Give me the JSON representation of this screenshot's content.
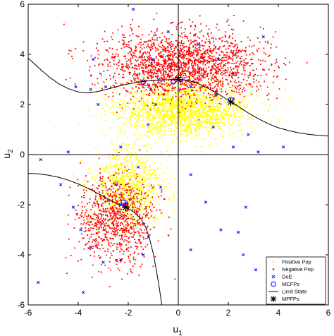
{
  "chart_data": {
    "type": "scatter",
    "title": "",
    "xlabel": "u",
    "xlabel_sub": "1",
    "ylabel": "u",
    "ylabel_sub": "2",
    "xlim": [
      -6,
      6
    ],
    "ylim": [
      -6,
      6
    ],
    "xticks": [
      "-6",
      "-4",
      "-2",
      "0",
      "2",
      "4",
      "6"
    ],
    "yticks": [
      "-6",
      "-4",
      "-2",
      "0",
      "2",
      "4",
      "6"
    ],
    "grid": false,
    "zero_lines": true,
    "legend_position": "bottom-right",
    "colors": {
      "positive": "#ffff00",
      "negative": "#ff0000",
      "doe": "#0000ff",
      "mcfp": "#0000ff",
      "limit_state": "#000000",
      "mpfp": "#000000"
    },
    "series": [
      {
        "name": "Positive Pop",
        "marker": "dot",
        "clusters": [
          {
            "center": [
              0.2,
              1.8
            ],
            "spread": [
              1.3,
              0.55
            ],
            "count": 1800
          },
          {
            "center": [
              -2.0,
              -1.3
            ],
            "spread": [
              0.7,
              0.8
            ],
            "count": 900
          }
        ]
      },
      {
        "name": "Negative Pop",
        "marker": "dot",
        "clusters": [
          {
            "center": [
              0.2,
              3.6
            ],
            "spread": [
              1.6,
              0.65
            ],
            "count": 1900
          },
          {
            "center": [
              -2.5,
              -2.6
            ],
            "spread": [
              0.75,
              0.9
            ],
            "count": 900
          }
        ]
      },
      {
        "name": "DoE",
        "marker": "x",
        "points": [
          [
            -3.4,
            3.8
          ],
          [
            -3.5,
            2.6
          ],
          [
            -4.1,
            2.7
          ],
          [
            -3.2,
            2.0
          ],
          [
            -1.8,
            5.8
          ],
          [
            -1.2,
            1.2
          ],
          [
            -1.0,
            3.8
          ],
          [
            -0.8,
            3.0
          ],
          [
            -0.4,
            4.9
          ],
          [
            0.5,
            2.7
          ],
          [
            0.8,
            4.4
          ],
          [
            1.5,
            2.4
          ],
          [
            2.2,
            3.2
          ],
          [
            3.4,
            4.7
          ],
          [
            1.6,
            3.8
          ],
          [
            1.4,
            1.1
          ],
          [
            3.2,
            0.1
          ],
          [
            2.2,
            0.3
          ],
          [
            -5.5,
            -0.2
          ],
          [
            -4.4,
            0.1
          ],
          [
            -2.3,
            0.3
          ],
          [
            -1.6,
            -0.5
          ],
          [
            -4.7,
            -1.2
          ],
          [
            -4.2,
            -2.1
          ],
          [
            -3.5,
            -3.7
          ],
          [
            -3.0,
            -4.3
          ],
          [
            -2.3,
            -4.2
          ],
          [
            -1.4,
            -4.0
          ],
          [
            -5.6,
            -5.1
          ],
          [
            -3.8,
            -5.5
          ],
          [
            -1.2,
            -3.3
          ],
          [
            0.5,
            -3.8
          ],
          [
            2.6,
            -4.0
          ],
          [
            3.1,
            -4.6
          ],
          [
            2.4,
            -3.1
          ],
          [
            1.7,
            -3.0
          ],
          [
            2.7,
            -2.1
          ],
          [
            1.1,
            -1.9
          ],
          [
            -0.7,
            -1.3
          ],
          [
            -2.5,
            -1.2
          ],
          [
            0.5,
            -0.8
          ],
          [
            2.8,
            0.8
          ],
          [
            -0.9,
            2.0
          ],
          [
            -2.9,
            2.7
          ],
          [
            -1.1,
            2.6
          ],
          [
            4.2,
            0.3
          ],
          [
            -3.9,
            -3.0
          ],
          [
            -2.3,
            -2.0
          ]
        ]
      },
      {
        "name": "MCFPs",
        "marker": "circle",
        "points": [
          [
            -1.4,
            2.9
          ],
          [
            -0.2,
            2.9
          ],
          [
            0.1,
            3.0
          ],
          [
            2.1,
            2.2
          ],
          [
            -2.1,
            -2.0
          ],
          [
            -2.2,
            -1.9
          ]
        ]
      },
      {
        "name": "Limit State",
        "marker": "line",
        "segments": [
          [
            [
              -6.0,
              3.85
            ],
            [
              -5.6,
              3.48
            ],
            [
              -5.2,
              3.13
            ],
            [
              -4.8,
              2.84
            ],
            [
              -4.4,
              2.63
            ],
            [
              -4.0,
              2.5
            ],
            [
              -3.6,
              2.46
            ],
            [
              -3.2,
              2.52
            ],
            [
              -2.8,
              2.62
            ],
            [
              -2.4,
              2.73
            ],
            [
              -2.0,
              2.82
            ],
            [
              -1.6,
              2.89
            ],
            [
              -1.2,
              2.94
            ],
            [
              -0.8,
              2.97
            ],
            [
              -0.4,
              2.99
            ],
            [
              0.0,
              3.0
            ],
            [
              0.4,
              2.96
            ],
            [
              0.8,
              2.83
            ],
            [
              1.2,
              2.64
            ],
            [
              1.6,
              2.42
            ],
            [
              2.0,
              2.17
            ],
            [
              2.4,
              1.92
            ],
            [
              2.8,
              1.66
            ],
            [
              3.2,
              1.43
            ],
            [
              3.6,
              1.23
            ],
            [
              4.0,
              1.07
            ],
            [
              4.4,
              0.96
            ],
            [
              4.8,
              0.87
            ],
            [
              5.2,
              0.81
            ],
            [
              5.6,
              0.77
            ],
            [
              6.0,
              0.74
            ]
          ],
          [
            [
              -6.0,
              -0.75
            ],
            [
              -5.6,
              -0.77
            ],
            [
              -5.2,
              -0.82
            ],
            [
              -4.8,
              -0.9
            ],
            [
              -4.4,
              -1.02
            ],
            [
              -4.0,
              -1.17
            ],
            [
              -3.6,
              -1.35
            ],
            [
              -3.2,
              -1.56
            ],
            [
              -2.8,
              -1.77
            ],
            [
              -2.4,
              -1.98
            ],
            [
              -2.1,
              -2.1
            ],
            [
              -1.8,
              -2.28
            ],
            [
              -1.5,
              -2.55
            ],
            [
              -1.3,
              -2.9
            ],
            [
              -1.15,
              -3.35
            ],
            [
              -1.0,
              -3.95
            ],
            [
              -0.88,
              -4.6
            ],
            [
              -0.76,
              -5.3
            ],
            [
              -0.66,
              -6.0
            ]
          ]
        ]
      },
      {
        "name": "MPFPs",
        "marker": "asterisk",
        "points": [
          [
            0.0,
            3.0
          ],
          [
            2.1,
            2.1
          ],
          [
            -2.1,
            -2.1
          ]
        ]
      }
    ]
  }
}
